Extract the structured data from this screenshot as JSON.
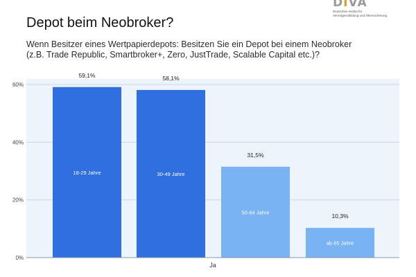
{
  "logo": {
    "mark": "DIVA",
    "sub_line1": "Deutsches Institut für",
    "sub_line2": "Vermögensbildung und Alterssicherung"
  },
  "header": {
    "title": "Depot beim Neobroker?",
    "subtitle_line1": "Wenn Besitzer eines Wertpapierdepots: Besitzen Sie ein Depot bei einem Neobroker",
    "subtitle_line2": "(z.B. Trade Republic, Smartbroker+, Zero, JustTrade, Scalable Capital etc.)?"
  },
  "colors": {
    "plot_bg": "#eef4fb",
    "bar_dark": "#2f6fe0",
    "bar_light": "#79b3f4",
    "grid": "#c9d6e6"
  },
  "chart_data": {
    "type": "bar",
    "categories": [
      "Ja"
    ],
    "series": [
      {
        "name": "18-29 Jahre",
        "values": [
          59.1
        ],
        "label": "59,1%",
        "color": "#2f6fe0"
      },
      {
        "name": "30-49 Jahre",
        "values": [
          58.1
        ],
        "label": "58,1%",
        "color": "#2f6fe0"
      },
      {
        "name": "50-64 Jahre",
        "values": [
          31.5
        ],
        "label": "31,5%",
        "color": "#79b3f4"
      },
      {
        "name": "ab 65 Jahre",
        "values": [
          10.3
        ],
        "label": "10,3%",
        "color": "#79b3f4"
      }
    ],
    "ylim": [
      0,
      60
    ],
    "yticks": [
      0,
      20,
      40,
      60
    ],
    "ytick_labels": [
      "0%",
      "20%",
      "40%",
      "60%"
    ],
    "grid": true,
    "legend": "inside-bars"
  }
}
